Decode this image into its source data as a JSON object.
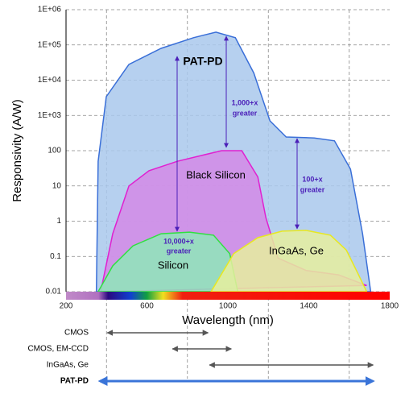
{
  "chart_data": {
    "type": "area",
    "x_label": "Wavelength (nm)",
    "y_label": "Responsivity (A/W)",
    "xlim": [
      200,
      1800
    ],
    "xticks": [
      200,
      600,
      1000,
      1400,
      1800
    ],
    "x_minor_grid": [
      400,
      800,
      1200,
      1600
    ],
    "ylim": [
      0.01,
      1000000
    ],
    "y_log": true,
    "grid": true,
    "yticks": [
      {
        "value": 1000000,
        "label": "1E+06"
      },
      {
        "value": 100000,
        "label": "1E+05"
      },
      {
        "value": 10000,
        "label": "1E+04"
      },
      {
        "value": 1000,
        "label": "1E+03"
      },
      100,
      10,
      1,
      0.1,
      0.01
    ],
    "series": [
      {
        "name": "PAT-PD",
        "color": "#3a6fd8",
        "fill": "#a9c8ec",
        "x": [
          350,
          359,
          399,
          511,
          670,
          830,
          941,
          1037,
          1128,
          1208,
          1288,
          1427,
          1527,
          1606,
          1666,
          1706
        ],
        "values": [
          0.01,
          50,
          3400,
          28000,
          80000,
          160000,
          230000,
          160000,
          16000,
          700,
          245,
          230,
          190,
          30,
          0.44,
          0.01
        ]
      },
      {
        "name": "Black Silicon",
        "color": "#e020d0",
        "fill": "#d48ae6",
        "x": [
          371,
          431,
          511,
          610,
          750,
          869,
          969,
          1069,
          1148,
          1188,
          1248,
          1387,
          1547,
          1686
        ],
        "values": [
          0.01,
          0.44,
          10,
          27,
          50,
          73,
          100,
          100,
          18,
          1.26,
          0.09,
          0.04,
          0.03,
          0.015
        ]
      },
      {
        "name": "Silicon",
        "color": "#30e040",
        "fill": "#8ee8b8",
        "x": [
          359,
          431,
          531,
          670,
          810,
          929,
          1009,
          1049
        ],
        "values": [
          0.01,
          0.054,
          0.2,
          0.44,
          0.49,
          0.4,
          0.12,
          0.01
        ]
      },
      {
        "name": "InGaAs, Ge",
        "color": "#e8e820",
        "fill": "#e6ef9e",
        "x": [
          917,
          1029,
          1148,
          1268,
          1387,
          1507,
          1586,
          1646,
          1686
        ],
        "values": [
          0.01,
          0.12,
          0.34,
          0.52,
          0.55,
          0.4,
          0.15,
          0.03,
          0.01
        ]
      }
    ],
    "annotations": [
      [
        "1,000+x",
        "greater"
      ],
      [
        "100+x",
        "greater"
      ],
      [
        "10,000+x",
        "greater"
      ]
    ],
    "ranges": [
      {
        "label": "CMOS",
        "start": 404,
        "end": 902,
        "color": "#555555"
      },
      {
        "label": "CMOS, EM-CCD",
        "start": 726,
        "end": 1017,
        "color": "#555555"
      },
      {
        "label": "InGaAs, Ge",
        "start": 909,
        "end": 1718,
        "color": "#555555"
      },
      {
        "label": "PAT-PD",
        "start": 367,
        "end": 1718,
        "color": "#3a74d8"
      }
    ]
  }
}
